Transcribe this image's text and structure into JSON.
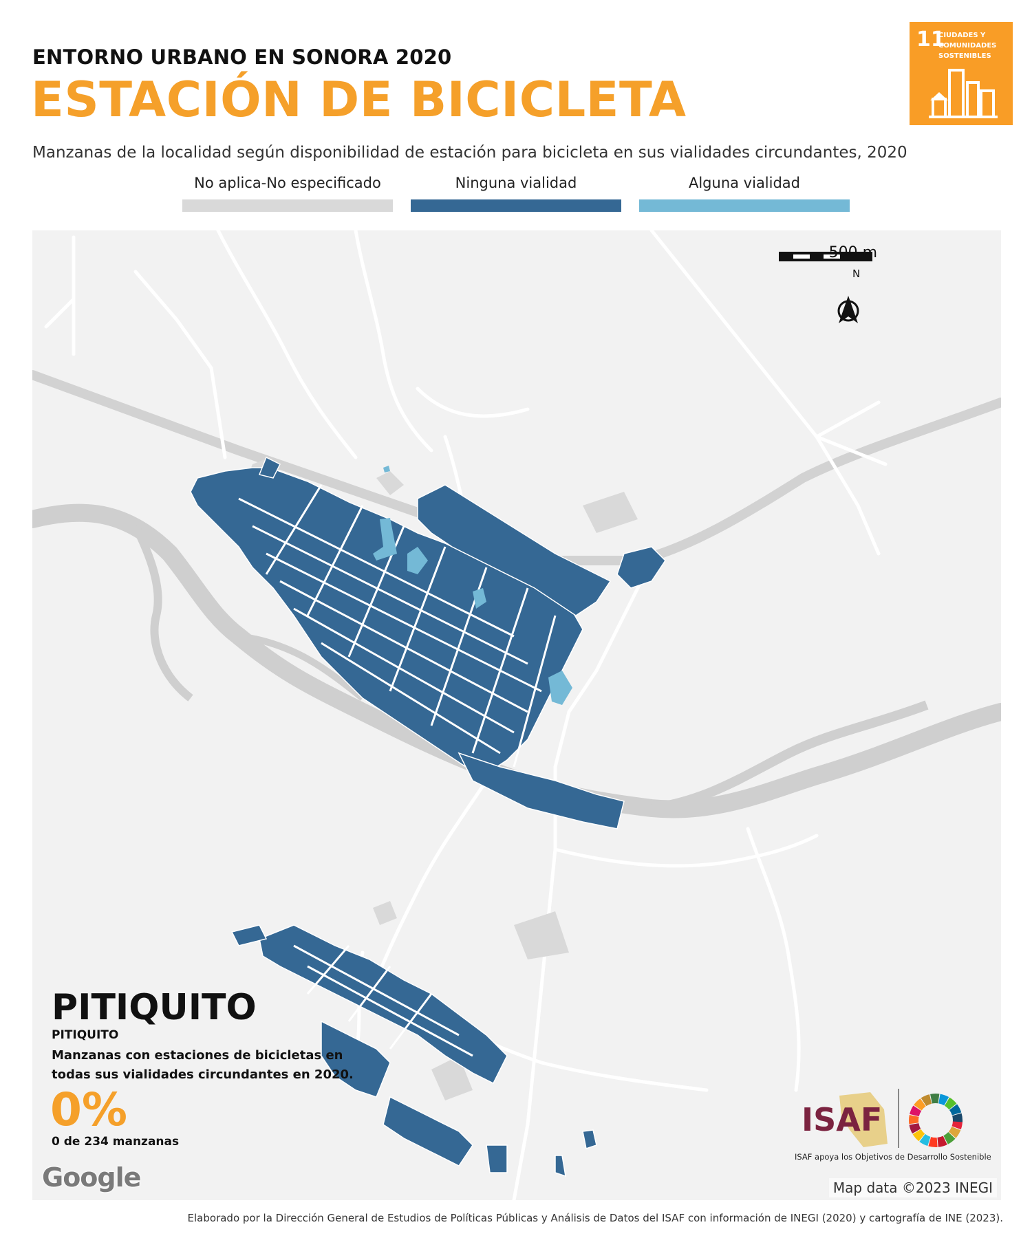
{
  "header": {
    "subtitle": "ENTORNO URBANO EN SONORA 2020",
    "title": "ESTACIÓN DE BICICLETA",
    "description": "Manzanas de la localidad según disponibilidad de estación para bicicleta en sus vialidades circundantes, 2020"
  },
  "sdg_badge": {
    "number": "11",
    "text": "CIUDADES Y COMUNIDADES SOSTENIBLES",
    "color": "#f99d26"
  },
  "legend": [
    {
      "label": "No aplica-No especificado",
      "color": "#d9d9d9"
    },
    {
      "label": "Ninguna vialidad",
      "color": "#356894"
    },
    {
      "label": "Alguna vialidad",
      "color": "#74b9d6"
    }
  ],
  "map": {
    "scale_label": "500 m",
    "north_label": "N",
    "attribution": "Map data ©2023 INEGI",
    "provider_logo": "Google",
    "colors": {
      "background": "#f2f2f2",
      "road": "#ffffff",
      "river": "#cfcfcf",
      "highway": "#d2d2d2"
    }
  },
  "place": {
    "name": "PITIQUITO",
    "municipality": "PITIQUITO",
    "description": "Manzanas con estaciones de bicicletas en todas sus vialidades circundantes en 2020.",
    "percent": "0%",
    "count": "0 de 234 manzanas"
  },
  "isaf": {
    "logo_text": "ISAF",
    "caption": "ISAF apoya los Objetivos de Desarrollo Sostenible"
  },
  "credit": "Elaborado por la Dirección General de Estudios de Políticas Públicas y Análisis de Datos del ISAF con información de INEGI (2020) y cartografía de INE (2023)."
}
